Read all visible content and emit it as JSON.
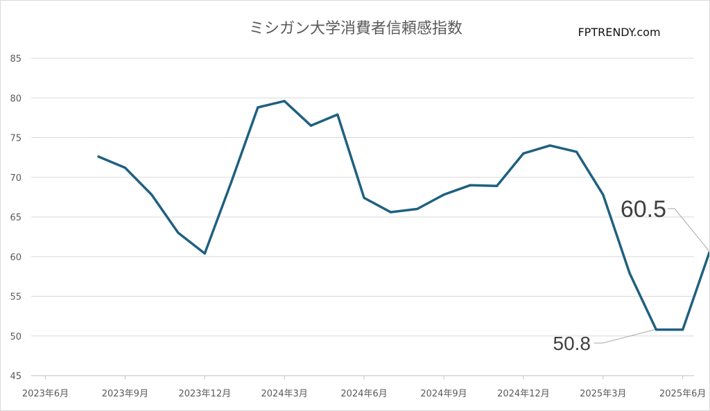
{
  "watermark": "FPTRENDY.com",
  "chart_data": {
    "type": "line",
    "title": "ミシガン大学消費者信頼感指数",
    "xlabel": "",
    "ylabel": "",
    "x_tick_labels": [
      "2023年6月",
      "2023年9月",
      "2023年12月",
      "2024年3月",
      "2024年6月",
      "2024年9月",
      "2024年12月",
      "2025年3月",
      "2025年6月"
    ],
    "y_ticks": [
      45,
      50,
      55,
      60,
      65,
      70,
      75,
      80,
      85
    ],
    "ylim": [
      45,
      85
    ],
    "grid": true,
    "legend": "none",
    "series": [
      {
        "color": "#1f6080",
        "points": [
          {
            "x": "2023-07",
            "y": 72.6
          },
          {
            "x": "2023-08",
            "y": 71.2
          },
          {
            "x": "2023-09",
            "y": 67.8
          },
          {
            "x": "2023-10",
            "y": 63.0
          },
          {
            "x": "2023-11",
            "y": 60.4
          },
          {
            "x": "2023-12",
            "y": 69.4
          },
          {
            "x": "2024-01",
            "y": 78.8
          },
          {
            "x": "2024-02",
            "y": 79.6
          },
          {
            "x": "2024-03",
            "y": 76.5
          },
          {
            "x": "2024-04",
            "y": 77.9
          },
          {
            "x": "2024-05",
            "y": 67.4
          },
          {
            "x": "2024-06",
            "y": 65.6
          },
          {
            "x": "2024-07",
            "y": 66.0
          },
          {
            "x": "2024-08",
            "y": 67.8
          },
          {
            "x": "2024-09",
            "y": 69.0
          },
          {
            "x": "2024-10",
            "y": 68.9
          },
          {
            "x": "2024-11",
            "y": 73.0
          },
          {
            "x": "2024-12",
            "y": 74.0
          },
          {
            "x": "2025-01",
            "y": 73.2
          },
          {
            "x": "2025-02",
            "y": 67.8
          },
          {
            "x": "2025-03",
            "y": 57.9
          },
          {
            "x": "2025-04",
            "y": 50.8
          },
          {
            "x": "2025-05",
            "y": 50.8
          },
          {
            "x": "2025-06",
            "y": 60.5
          }
        ]
      }
    ],
    "annotations": [
      {
        "text": "60.5",
        "x": "2025-06",
        "y": 60.5,
        "size": "large"
      },
      {
        "text": "50.8",
        "x": "2025-04",
        "y": 50.8,
        "size": "medium"
      }
    ]
  }
}
